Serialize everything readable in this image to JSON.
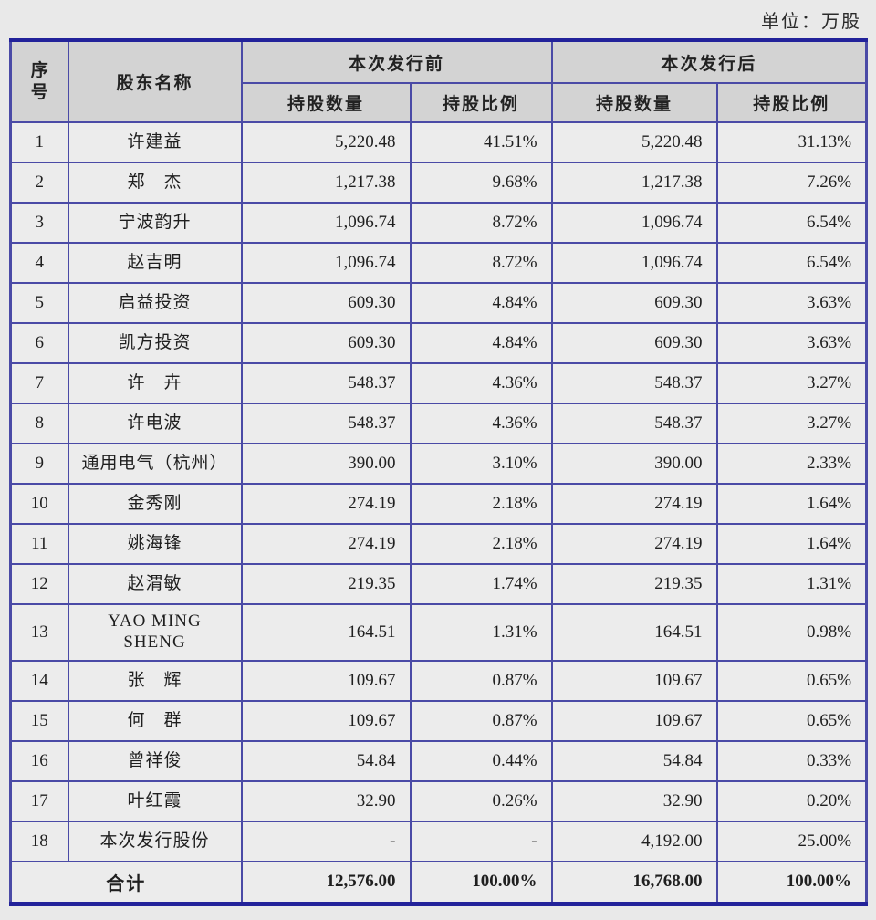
{
  "unit_label": "单位：万股",
  "table": {
    "header": {
      "no": "序\n号",
      "shareholder": "股东名称",
      "before_group": "本次发行前",
      "after_group": "本次发行后",
      "qty": "持股数量",
      "pct": "持股比例"
    },
    "rows": [
      {
        "no": "1",
        "name": "许建益",
        "before_qty": "5,220.48",
        "before_pct": "41.51%",
        "after_qty": "5,220.48",
        "after_pct": "31.13%"
      },
      {
        "no": "2",
        "name": "郑　杰",
        "before_qty": "1,217.38",
        "before_pct": "9.68%",
        "after_qty": "1,217.38",
        "after_pct": "7.26%"
      },
      {
        "no": "3",
        "name": "宁波韵升",
        "before_qty": "1,096.74",
        "before_pct": "8.72%",
        "after_qty": "1,096.74",
        "after_pct": "6.54%"
      },
      {
        "no": "4",
        "name": "赵吉明",
        "before_qty": "1,096.74",
        "before_pct": "8.72%",
        "after_qty": "1,096.74",
        "after_pct": "6.54%"
      },
      {
        "no": "5",
        "name": "启益投资",
        "before_qty": "609.30",
        "before_pct": "4.84%",
        "after_qty": "609.30",
        "after_pct": "3.63%"
      },
      {
        "no": "6",
        "name": "凯方投资",
        "before_qty": "609.30",
        "before_pct": "4.84%",
        "after_qty": "609.30",
        "after_pct": "3.63%"
      },
      {
        "no": "7",
        "name": "许　卉",
        "before_qty": "548.37",
        "before_pct": "4.36%",
        "after_qty": "548.37",
        "after_pct": "3.27%"
      },
      {
        "no": "8",
        "name": "许电波",
        "before_qty": "548.37",
        "before_pct": "4.36%",
        "after_qty": "548.37",
        "after_pct": "3.27%"
      },
      {
        "no": "9",
        "name": "通用电气（杭州）",
        "before_qty": "390.00",
        "before_pct": "3.10%",
        "after_qty": "390.00",
        "after_pct": "2.33%"
      },
      {
        "no": "10",
        "name": "金秀刚",
        "before_qty": "274.19",
        "before_pct": "2.18%",
        "after_qty": "274.19",
        "after_pct": "1.64%"
      },
      {
        "no": "11",
        "name": "姚海锋",
        "before_qty": "274.19",
        "before_pct": "2.18%",
        "after_qty": "274.19",
        "after_pct": "1.64%"
      },
      {
        "no": "12",
        "name": "赵渭敏",
        "before_qty": "219.35",
        "before_pct": "1.74%",
        "after_qty": "219.35",
        "after_pct": "1.31%"
      },
      {
        "no": "13",
        "name": "YAO MING\nSHENG",
        "before_qty": "164.51",
        "before_pct": "1.31%",
        "after_qty": "164.51",
        "after_pct": "0.98%"
      },
      {
        "no": "14",
        "name": "张　辉",
        "before_qty": "109.67",
        "before_pct": "0.87%",
        "after_qty": "109.67",
        "after_pct": "0.65%"
      },
      {
        "no": "15",
        "name": "何　群",
        "before_qty": "109.67",
        "before_pct": "0.87%",
        "after_qty": "109.67",
        "after_pct": "0.65%"
      },
      {
        "no": "16",
        "name": "曾祥俊",
        "before_qty": "54.84",
        "before_pct": "0.44%",
        "after_qty": "54.84",
        "after_pct": "0.33%"
      },
      {
        "no": "17",
        "name": "叶红霞",
        "before_qty": "32.90",
        "before_pct": "0.26%",
        "after_qty": "32.90",
        "after_pct": "0.20%"
      },
      {
        "no": "18",
        "name": "本次发行股份",
        "before_qty": "-",
        "before_pct": "-",
        "after_qty": "4,192.00",
        "after_pct": "25.00%"
      }
    ],
    "total": {
      "label": "合计",
      "before_qty": "12,576.00",
      "before_pct": "100.00%",
      "after_qty": "16,768.00",
      "after_pct": "100.00%"
    }
  },
  "colors": {
    "page_bg": "#e9e9e9",
    "header_bg": "#d3d3d3",
    "inner_border": "#4a4aa6",
    "outer_border": "#22229a",
    "text": "#1f1f1f"
  }
}
